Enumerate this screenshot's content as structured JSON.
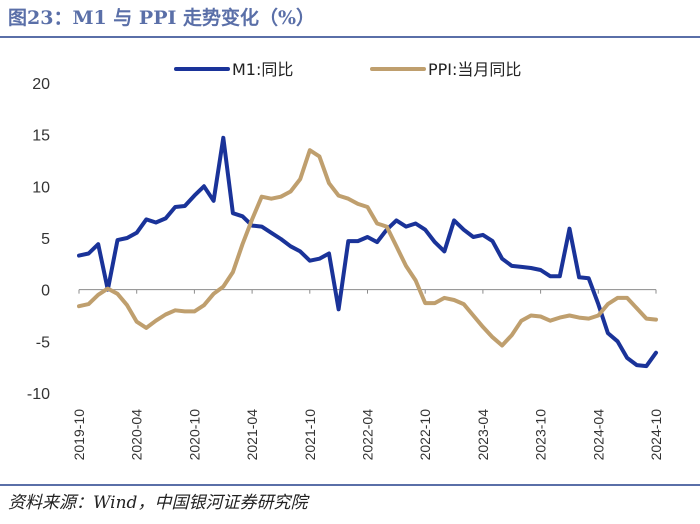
{
  "figure": {
    "title": "图23：M1 与 PPI 走势变化（%）",
    "source": "资料来源：Wind，中国银河证券研究院"
  },
  "chart_data": {
    "type": "line",
    "title": "M1 与 PPI 走势变化（%）",
    "xlabel": "",
    "ylabel": "",
    "ylim": [
      -10,
      20
    ],
    "yticks": [
      20,
      15,
      10,
      5,
      0,
      -5,
      -10
    ],
    "grid": false,
    "legend_position": "top",
    "x_start": "2019-10",
    "x_tick_labels": [
      "2019-10",
      "2020-04",
      "2020-10",
      "2021-04",
      "2021-10",
      "2022-04",
      "2022-10",
      "2023-04",
      "2023-10",
      "2024-04",
      "2024-10"
    ],
    "series": [
      {
        "name": "M1:同比",
        "color": "#1a3399",
        "values": [
          3.3,
          3.5,
          4.4,
          0.0,
          4.8,
          5.0,
          5.5,
          6.8,
          6.5,
          6.9,
          8.0,
          8.1,
          9.1,
          10.0,
          8.6,
          14.7,
          7.4,
          7.1,
          6.2,
          6.1,
          5.5,
          4.9,
          4.2,
          3.7,
          2.8,
          3.0,
          3.5,
          -1.9,
          4.7,
          4.7,
          5.1,
          4.6,
          5.8,
          6.7,
          6.1,
          6.4,
          5.8,
          4.6,
          3.7,
          6.7,
          5.8,
          5.1,
          5.3,
          4.7,
          3.0,
          2.3,
          2.2,
          2.1,
          1.9,
          1.3,
          1.3,
          5.9,
          1.2,
          1.1,
          -1.4,
          -4.2,
          -5.0,
          -6.6,
          -7.3,
          -7.4,
          -6.1
        ]
      },
      {
        "name": "PPI:当月同比",
        "color": "#bf9f6e",
        "values": [
          -1.6,
          -1.4,
          -0.5,
          0.1,
          -0.4,
          -1.5,
          -3.1,
          -3.7,
          -3.0,
          -2.4,
          -2.0,
          -2.1,
          -2.1,
          -1.5,
          -0.4,
          0.3,
          1.7,
          4.4,
          6.8,
          9.0,
          8.8,
          9.0,
          9.5,
          10.7,
          13.5,
          12.9,
          10.3,
          9.1,
          8.8,
          8.3,
          8.0,
          6.4,
          6.1,
          4.2,
          2.3,
          0.9,
          -1.3,
          -1.3,
          -0.8,
          -1.0,
          -1.4,
          -2.5,
          -3.6,
          -4.6,
          -5.4,
          -4.4,
          -3.0,
          -2.5,
          -2.6,
          -3.0,
          -2.7,
          -2.5,
          -2.7,
          -2.8,
          -2.5,
          -1.4,
          -0.8,
          -0.8,
          -1.8,
          -2.8,
          -2.9
        ]
      }
    ]
  }
}
